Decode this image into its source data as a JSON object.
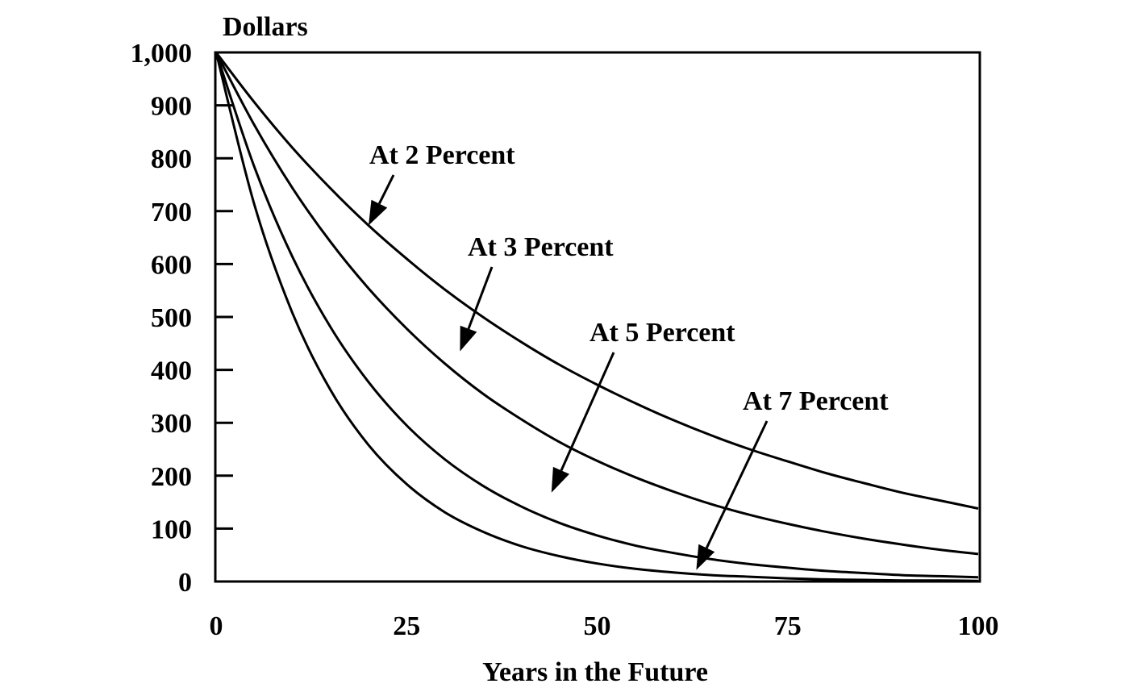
{
  "chart_data": {
    "type": "line",
    "ylabel": "Dollars",
    "xlabel": "Years in the Future",
    "xlim": [
      0,
      100
    ],
    "ylim": [
      0,
      1000
    ],
    "x_ticks": [
      0,
      25,
      50,
      75,
      100
    ],
    "y_ticks": [
      0,
      100,
      200,
      300,
      400,
      500,
      600,
      700,
      800,
      900,
      1000
    ],
    "y_tick_labels": [
      "0",
      "100",
      "200",
      "300",
      "400",
      "500",
      "600",
      "700",
      "800",
      "900",
      "1,000"
    ],
    "grid": false,
    "x": [
      0,
      5,
      10,
      15,
      20,
      25,
      30,
      35,
      40,
      45,
      50,
      55,
      60,
      65,
      70,
      75,
      80,
      85,
      90,
      95,
      100
    ],
    "series": [
      {
        "values": [
          1000,
          906,
          820,
          743,
          673,
          610,
          552,
          500,
          453,
          410,
          372,
          337,
          305,
          276,
          250,
          227,
          205,
          186,
          168,
          153,
          138
        ]
      },
      {
        "values": [
          1000,
          863,
          744,
          642,
          554,
          478,
          412,
          355,
          307,
          264,
          228,
          197,
          170,
          146,
          126,
          109,
          94,
          81,
          70,
          60,
          52
        ]
      },
      {
        "values": [
          1000,
          784,
          614,
          481,
          377,
          295,
          231,
          181,
          142,
          111,
          87,
          68,
          54,
          42,
          33,
          26,
          20,
          16,
          12,
          10,
          8
        ]
      },
      {
        "values": [
          1000,
          713,
          508,
          362,
          258,
          184,
          131,
          94,
          67,
          48,
          34,
          24,
          17,
          12,
          9,
          6,
          4,
          3,
          2,
          2,
          1
        ]
      }
    ],
    "annotations": [
      {
        "text": "At 2 Percent",
        "target_x": 20,
        "target_y": 673
      },
      {
        "text": "At 3 Percent",
        "target_x": 32,
        "target_y": 435
      },
      {
        "text": "At 5 Percent",
        "target_x": 44,
        "target_y": 168
      },
      {
        "text": "At 7 Percent",
        "target_x": 63,
        "target_y": 22
      }
    ]
  }
}
